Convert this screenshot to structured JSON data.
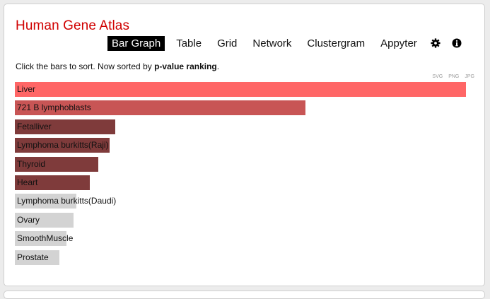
{
  "header": {
    "title": "Human Gene Atlas"
  },
  "nav": {
    "tabs": [
      "Bar Graph",
      "Table",
      "Grid",
      "Network",
      "Clustergram",
      "Appyter"
    ],
    "active_index": 0
  },
  "hint": {
    "prefix": "Click the bars to sort. Now sorted by ",
    "sort": "p-value ranking",
    "suffix": "."
  },
  "exports": [
    "SVG",
    "PNG",
    "JPG"
  ],
  "colors": {
    "title": "#d00000",
    "bar_top": "#ff6666",
    "bar_second": "#c85555",
    "bar_significant": "#7f3b3b",
    "bar_other": "#d3d3d3"
  },
  "chart_data": {
    "type": "bar",
    "orientation": "horizontal",
    "categories": [
      "Liver",
      "721 B lymphoblasts",
      "Fetalliver",
      "Lymphoma burkitts(Raji)",
      "Thyroid",
      "Heart",
      "Lymphoma burkitts(Daudi)",
      "Ovary",
      "SmoothMuscle",
      "Prostate"
    ],
    "values": [
      1.0,
      0.644,
      0.223,
      0.21,
      0.185,
      0.166,
      0.136,
      0.13,
      0.115,
      0.099
    ],
    "color_groups": [
      "top",
      "second",
      "significant",
      "significant",
      "significant",
      "significant",
      "other",
      "other",
      "other",
      "other"
    ]
  }
}
